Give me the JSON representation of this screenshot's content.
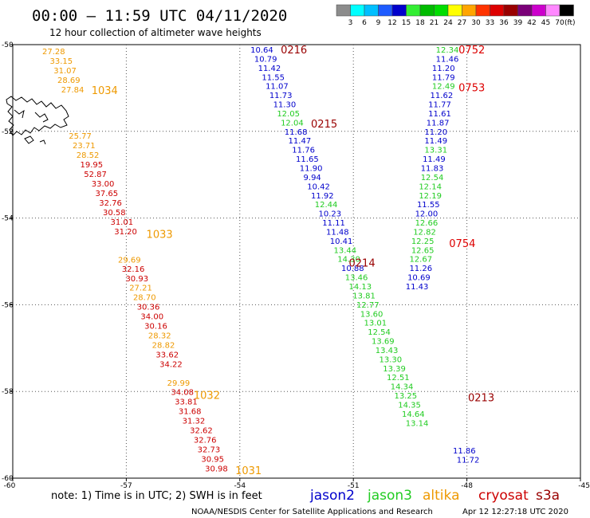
{
  "header": {
    "title": "00:00 – 11:59 UTC 04/11/2020",
    "subtitle": "12 hour collection of altimeter wave heights"
  },
  "colorbar": {
    "unit": "(ft)",
    "labels": [
      "3",
      "6",
      "9",
      "12",
      "15",
      "18",
      "21",
      "24",
      "27",
      "30",
      "33",
      "36",
      "39",
      "42",
      "45",
      "70"
    ],
    "colors": [
      "#8c8c8c",
      "#00ffff",
      "#00bfff",
      "#1e5bff",
      "#0000cc",
      "#33ee33",
      "#00bb00",
      "#00dd00",
      "#ffff00",
      "#ffa500",
      "#ff3300",
      "#dd0000",
      "#990000",
      "#7a0078",
      "#cc00cc",
      "#ff88ff",
      "#000000"
    ]
  },
  "chart_data": {
    "type": "scatter",
    "xlim": [
      -60,
      -45
    ],
    "ylim": [
      -60,
      -50
    ],
    "xticks": [
      "-60",
      "-57",
      "-54",
      "-51",
      "-48",
      "-45"
    ],
    "yticks": [
      "-50",
      "-52",
      "-54",
      "-56",
      "-58",
      "-60"
    ],
    "grid": true,
    "series": [
      {
        "name": "jason2",
        "color": "#0000cc",
        "points": [
          {
            "lon": -53.72,
            "lat": -50.11,
            "swh": "10.64"
          },
          {
            "lon": -53.62,
            "lat": -50.32,
            "swh": "10.79"
          },
          {
            "lon": -53.52,
            "lat": -50.53,
            "swh": "11.42"
          },
          {
            "lon": -53.42,
            "lat": -50.74,
            "swh": "11.55"
          },
          {
            "lon": -53.32,
            "lat": -50.95,
            "swh": "11.07"
          },
          {
            "lon": -53.22,
            "lat": -51.16,
            "swh": "11.73"
          },
          {
            "lon": -53.12,
            "lat": -51.37,
            "swh": "11.30"
          },
          {
            "lon": -52.82,
            "lat": -52.0,
            "swh": "11.68"
          },
          {
            "lon": -52.72,
            "lat": -52.21,
            "swh": "11.47"
          },
          {
            "lon": -52.62,
            "lat": -52.42,
            "swh": "11.76"
          },
          {
            "lon": -52.52,
            "lat": -52.63,
            "swh": "11.65"
          },
          {
            "lon": -52.42,
            "lat": -52.84,
            "swh": "11.90"
          },
          {
            "lon": -52.32,
            "lat": -53.05,
            "swh": "9.94"
          },
          {
            "lon": -52.22,
            "lat": -53.26,
            "swh": "10.42"
          },
          {
            "lon": -52.12,
            "lat": -53.47,
            "swh": "11.92"
          },
          {
            "lon": -51.92,
            "lat": -53.89,
            "swh": "10.23"
          },
          {
            "lon": -51.82,
            "lat": -54.1,
            "swh": "11.11"
          },
          {
            "lon": -51.72,
            "lat": -54.31,
            "swh": "11.48"
          },
          {
            "lon": -51.62,
            "lat": -54.52,
            "swh": "10.41"
          },
          {
            "lon": -51.32,
            "lat": -55.15,
            "swh": "10.88"
          },
          {
            "lon": -48.82,
            "lat": -50.32,
            "swh": "11.46"
          },
          {
            "lon": -48.92,
            "lat": -50.53,
            "swh": "11.20"
          },
          {
            "lon": -48.92,
            "lat": -50.74,
            "swh": "11.79"
          },
          {
            "lon": -48.97,
            "lat": -51.16,
            "swh": "11.62"
          },
          {
            "lon": -49.02,
            "lat": -51.37,
            "swh": "11.77"
          },
          {
            "lon": -49.02,
            "lat": -51.58,
            "swh": "11.61"
          },
          {
            "lon": -49.07,
            "lat": -51.79,
            "swh": "11.87"
          },
          {
            "lon": -49.12,
            "lat": -52.0,
            "swh": "11.20"
          },
          {
            "lon": -49.12,
            "lat": -52.21,
            "swh": "11.49"
          },
          {
            "lon": -49.17,
            "lat": -52.63,
            "swh": "11.49"
          },
          {
            "lon": -49.22,
            "lat": -52.84,
            "swh": "11.83"
          },
          {
            "lon": -49.32,
            "lat": -53.68,
            "swh": "11.55"
          },
          {
            "lon": -49.37,
            "lat": -53.89,
            "swh": "12.00"
          },
          {
            "lon": -49.52,
            "lat": -55.15,
            "swh": "11.26"
          },
          {
            "lon": -49.57,
            "lat": -55.36,
            "swh": "10.69"
          },
          {
            "lon": -49.62,
            "lat": -55.57,
            "swh": "11.43"
          },
          {
            "lon": -48.37,
            "lat": -59.36,
            "swh": "11.86"
          },
          {
            "lon": -48.27,
            "lat": -59.57,
            "swh": "11.72"
          }
        ]
      },
      {
        "name": "jason3",
        "color": "#22cc22",
        "points": [
          {
            "lon": -53.02,
            "lat": -51.58,
            "swh": "12.05"
          },
          {
            "lon": -52.92,
            "lat": -51.79,
            "swh": "12.04"
          },
          {
            "lon": -52.02,
            "lat": -53.68,
            "swh": "12.44"
          },
          {
            "lon": -51.52,
            "lat": -54.73,
            "swh": "13.44"
          },
          {
            "lon": -51.42,
            "lat": -54.94,
            "swh": "14.30"
          },
          {
            "lon": -51.22,
            "lat": -55.36,
            "swh": "13.46"
          },
          {
            "lon": -51.12,
            "lat": -55.57,
            "swh": "14.13"
          },
          {
            "lon": -51.02,
            "lat": -55.78,
            "swh": "13.81"
          },
          {
            "lon": -50.92,
            "lat": -55.99,
            "swh": "12.77"
          },
          {
            "lon": -50.82,
            "lat": -56.2,
            "swh": "13.60"
          },
          {
            "lon": -50.72,
            "lat": -56.41,
            "swh": "13.01"
          },
          {
            "lon": -50.62,
            "lat": -56.62,
            "swh": "12.54"
          },
          {
            "lon": -50.52,
            "lat": -56.83,
            "swh": "13.69"
          },
          {
            "lon": -50.42,
            "lat": -57.04,
            "swh": "13.43"
          },
          {
            "lon": -50.32,
            "lat": -57.25,
            "swh": "13.30"
          },
          {
            "lon": -50.22,
            "lat": -57.46,
            "swh": "13.39"
          },
          {
            "lon": -50.12,
            "lat": -57.67,
            "swh": "12.51"
          },
          {
            "lon": -50.02,
            "lat": -57.88,
            "swh": "14.34"
          },
          {
            "lon": -49.92,
            "lat": -58.09,
            "swh": "13.25"
          },
          {
            "lon": -49.82,
            "lat": -58.3,
            "swh": "14.35"
          },
          {
            "lon": -49.72,
            "lat": -58.51,
            "swh": "14.64"
          },
          {
            "lon": -49.62,
            "lat": -58.72,
            "swh": "13.14"
          },
          {
            "lon": -48.82,
            "lat": -50.11,
            "swh": "12.34"
          },
          {
            "lon": -48.92,
            "lat": -50.95,
            "swh": "12.49"
          },
          {
            "lon": -49.12,
            "lat": -52.42,
            "swh": "13.31"
          },
          {
            "lon": -49.22,
            "lat": -53.05,
            "swh": "12.54"
          },
          {
            "lon": -49.27,
            "lat": -53.26,
            "swh": "12.14"
          },
          {
            "lon": -49.27,
            "lat": -53.47,
            "swh": "12.19"
          },
          {
            "lon": -49.37,
            "lat": -54.1,
            "swh": "12.66"
          },
          {
            "lon": -49.42,
            "lat": -54.31,
            "swh": "12.82"
          },
          {
            "lon": -49.47,
            "lat": -54.52,
            "swh": "12.25"
          },
          {
            "lon": -49.47,
            "lat": -54.73,
            "swh": "12.65"
          },
          {
            "lon": -49.52,
            "lat": -54.94,
            "swh": "12.67"
          }
        ]
      },
      {
        "name": "altika",
        "color": "#ee9900",
        "points": [
          {
            "lon": -59.22,
            "lat": -50.15,
            "swh": "27.28"
          },
          {
            "lon": -59.02,
            "lat": -50.37,
            "swh": "33.15"
          },
          {
            "lon": -58.92,
            "lat": -50.59,
            "swh": "31.07"
          },
          {
            "lon": -58.82,
            "lat": -50.81,
            "swh": "28.69"
          },
          {
            "lon": -58.72,
            "lat": -51.03,
            "swh": "27.84"
          },
          {
            "lon": -58.52,
            "lat": -52.1,
            "swh": "25.77"
          },
          {
            "lon": -58.42,
            "lat": -52.32,
            "swh": "23.71"
          },
          {
            "lon": -58.32,
            "lat": -52.54,
            "swh": "28.52"
          },
          {
            "lon": -57.22,
            "lat": -54.95,
            "swh": "29.69"
          },
          {
            "lon": -56.92,
            "lat": -55.6,
            "swh": "27.21"
          },
          {
            "lon": -56.82,
            "lat": -55.82,
            "swh": "28.70"
          },
          {
            "lon": -56.42,
            "lat": -56.7,
            "swh": "28.32"
          },
          {
            "lon": -56.32,
            "lat": -56.92,
            "swh": "28.82"
          },
          {
            "lon": -55.92,
            "lat": -57.79,
            "swh": "29.99"
          }
        ]
      },
      {
        "name": "cryosat",
        "color": "#cc0000",
        "points": [
          {
            "lon": -58.22,
            "lat": -52.76,
            "swh": "19.95"
          },
          {
            "lon": -58.12,
            "lat": -52.98,
            "swh": "52.87"
          },
          {
            "lon": -57.92,
            "lat": -53.2,
            "swh": "33.00"
          },
          {
            "lon": -57.82,
            "lat": -53.42,
            "swh": "37.65"
          },
          {
            "lon": -57.72,
            "lat": -53.64,
            "swh": "32.76"
          },
          {
            "lon": -57.62,
            "lat": -53.86,
            "swh": "30.58"
          },
          {
            "lon": -57.42,
            "lat": -54.08,
            "swh": "31.01"
          },
          {
            "lon": -57.32,
            "lat": -54.3,
            "swh": "31.20"
          },
          {
            "lon": -57.12,
            "lat": -55.17,
            "swh": "32.16"
          },
          {
            "lon": -57.02,
            "lat": -55.39,
            "swh": "30.93"
          },
          {
            "lon": -56.72,
            "lat": -56.04,
            "swh": "30.36"
          },
          {
            "lon": -56.62,
            "lat": -56.26,
            "swh": "34.00"
          },
          {
            "lon": -56.52,
            "lat": -56.48,
            "swh": "30.16"
          },
          {
            "lon": -56.22,
            "lat": -57.14,
            "swh": "33.62"
          },
          {
            "lon": -56.12,
            "lat": -57.36,
            "swh": "34.22"
          },
          {
            "lon": -55.82,
            "lat": -58.01,
            "swh": "34.08"
          },
          {
            "lon": -55.72,
            "lat": -58.23,
            "swh": "33.81"
          },
          {
            "lon": -55.62,
            "lat": -58.45,
            "swh": "31.68"
          },
          {
            "lon": -55.52,
            "lat": -58.67,
            "swh": "31.32"
          },
          {
            "lon": -55.32,
            "lat": -58.89,
            "swh": "32.62"
          },
          {
            "lon": -55.22,
            "lat": -59.11,
            "swh": "32.76"
          },
          {
            "lon": -55.12,
            "lat": -59.33,
            "swh": "32.73"
          },
          {
            "lon": -55.02,
            "lat": -59.55,
            "swh": "30.95"
          },
          {
            "lon": -54.92,
            "lat": -59.77,
            "swh": "30.98"
          }
        ]
      }
    ],
    "time_labels": [
      {
        "text": "0216",
        "lon": -52.92,
        "lat": -50.11,
        "color": "#990000"
      },
      {
        "text": "0215",
        "lon": -52.12,
        "lat": -51.82,
        "color": "#990000"
      },
      {
        "text": "0214",
        "lon": -51.12,
        "lat": -55.03,
        "color": "#990000"
      },
      {
        "text": "0752",
        "lon": -48.22,
        "lat": -50.11,
        "color": "#dd0000"
      },
      {
        "text": "0753",
        "lon": -48.22,
        "lat": -50.98,
        "color": "#dd0000"
      },
      {
        "text": "0754",
        "lon": -48.47,
        "lat": -54.58,
        "color": "#dd0000"
      },
      {
        "text": "0213",
        "lon": -47.97,
        "lat": -58.13,
        "color": "#990000"
      },
      {
        "text": "1034",
        "lon": -57.92,
        "lat": -51.05,
        "color": "#ee9900"
      },
      {
        "text": "1033",
        "lon": -56.47,
        "lat": -54.37,
        "color": "#ee9900"
      },
      {
        "text": "1032",
        "lon": -55.22,
        "lat": -58.08,
        "color": "#ee9900"
      },
      {
        "text": "1031",
        "lon": -54.12,
        "lat": -59.82,
        "color": "#ee9900"
      }
    ]
  },
  "footer": {
    "note": "note: 1) Time is in UTC; 2) SWH is in feet",
    "legend": [
      {
        "name": "jason2",
        "color": "#0000cc"
      },
      {
        "name": "jason3",
        "color": "#22cc22"
      },
      {
        "name": "altika",
        "color": "#ee9900"
      },
      {
        "name": "cryosat",
        "color": "#cc0000"
      },
      {
        "name": "s3a",
        "color": "#990000"
      }
    ],
    "credit": "NOAA/NESDIS Center for Satellite Applications and Research",
    "timestamp": "Apr 12 12:27:18 UTC 2020"
  }
}
